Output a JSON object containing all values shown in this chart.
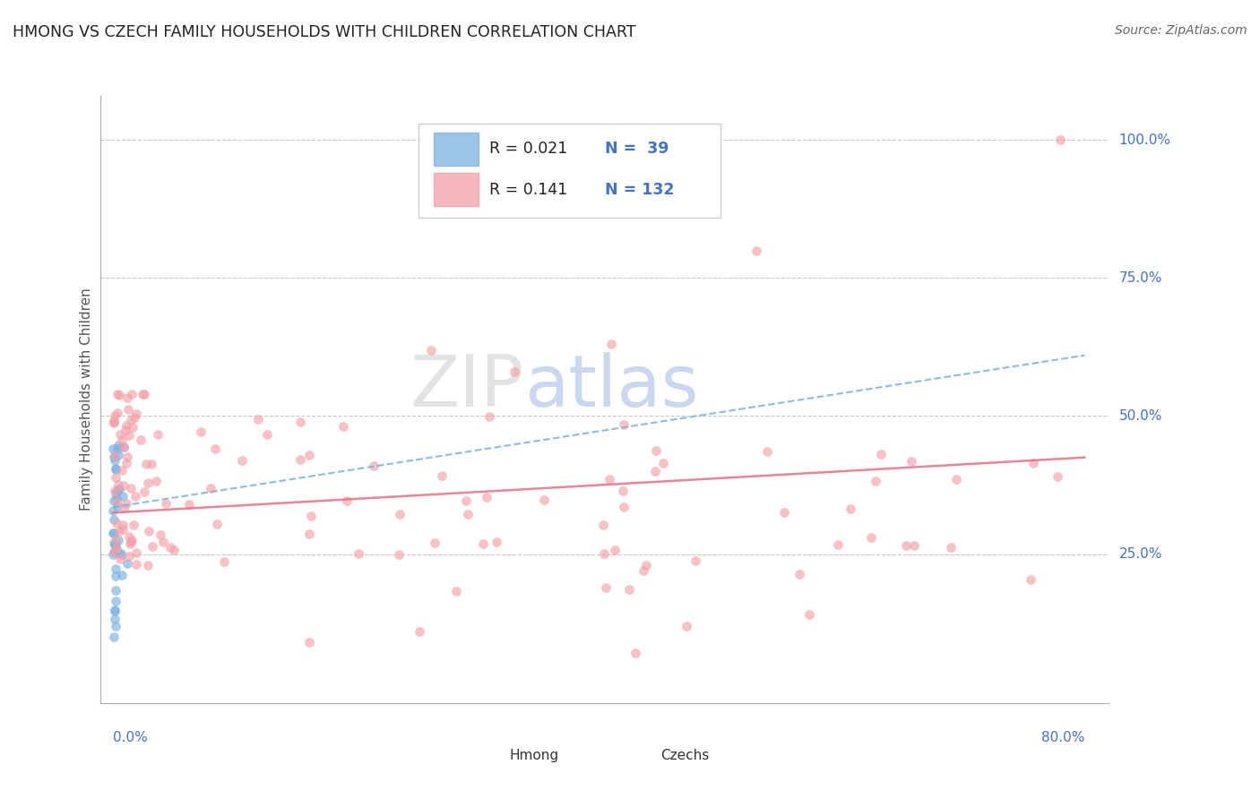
{
  "title": "HMONG VS CZECH FAMILY HOUSEHOLDS WITH CHILDREN CORRELATION CHART",
  "source": "Source: ZipAtlas.com",
  "ylabel": "Family Households with Children",
  "color_hmong": "#7ab0e0",
  "color_czechs": "#f4a0a8",
  "color_hmong_line": "#7ab0e0",
  "color_czechs_line": "#e87080",
  "color_axis": "#4472c4",
  "watermark_zip": "#cccccc",
  "watermark_atlas": "#88aadd",
  "xlim": [
    0.0,
    0.8
  ],
  "ylim": [
    -0.02,
    1.08
  ],
  "ytick_positions": [
    0.25,
    0.5,
    0.75,
    1.0
  ],
  "ytick_labels": [
    "25.0%",
    "50.0%",
    "75.0%",
    "100.0%"
  ],
  "hmong_line_x0": 0.0,
  "hmong_line_y0": 0.335,
  "hmong_line_x1": 0.8,
  "hmong_line_y1": 0.61,
  "czechs_line_x0": 0.0,
  "czechs_line_y0": 0.325,
  "czechs_line_x1": 0.8,
  "czechs_line_y1": 0.425,
  "legend_R_hmong": "R = 0.021",
  "legend_N_hmong": "N =  39",
  "legend_R_czechs": "R = 0.141",
  "legend_N_czechs": "N = 132"
}
